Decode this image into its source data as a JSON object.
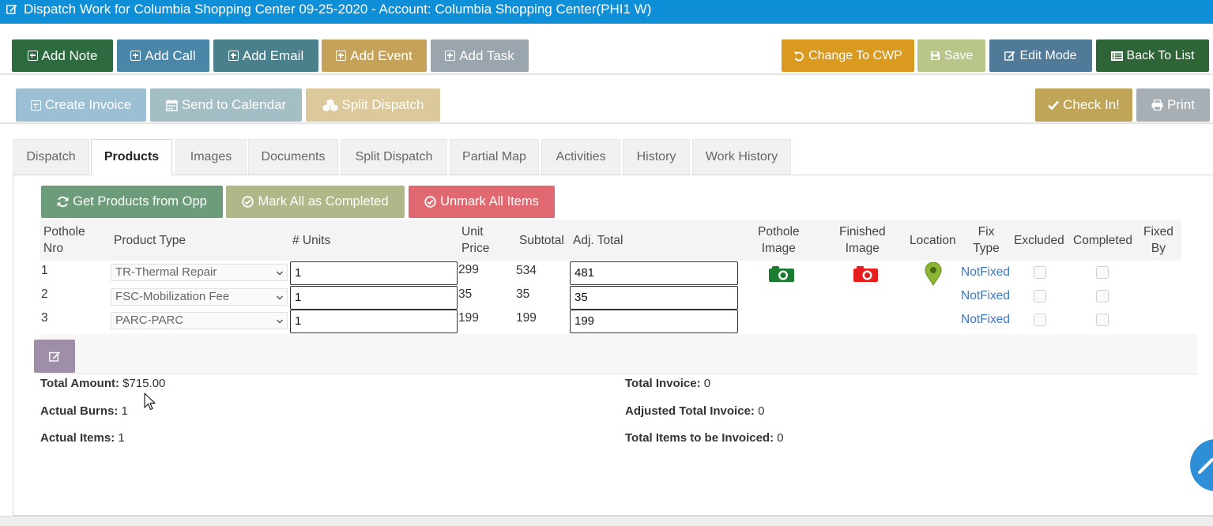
{
  "title": "Dispatch Work for Columbia Shopping Center 09-25-2020 - Account: Columbia Shopping Center(PHI1 W)",
  "toolbar1": {
    "add_note": "Add Note",
    "add_call": "Add Call",
    "add_email": "Add Email",
    "add_event": "Add Event",
    "add_task": "Add Task",
    "change_to_cwp": "Change To CWP",
    "save": "Save",
    "edit_mode": "Edit Mode",
    "back_to_list": "Back To List"
  },
  "toolbar2": {
    "create_invoice": "Create Invoice",
    "send_to_calendar": "Send to Calendar",
    "split_dispatch": "Split Dispatch",
    "check_in": "Check In!",
    "print": "Print"
  },
  "tabs": [
    "Dispatch",
    "Products",
    "Images",
    "Documents",
    "Split Dispatch",
    "Partial Map",
    "Activities",
    "History",
    "Work History"
  ],
  "active_tab": "Products",
  "actions": {
    "get_products": "Get Products from Opp",
    "mark_all": "Mark All as Completed",
    "unmark_all": "Unmark All Items"
  },
  "columns": {
    "pothole_nro": [
      "Pothole",
      "Nro"
    ],
    "product_type": "Product Type",
    "units": "# Units",
    "unit_price": [
      "Unit",
      "Price"
    ],
    "subtotal": "Subtotal",
    "adj_total": "Adj. Total",
    "pothole_image": [
      "Pothole",
      "Image"
    ],
    "finished_image": [
      "Finished",
      "Image"
    ],
    "location": "Location",
    "fix_type": [
      "Fix",
      "Type"
    ],
    "excluded": "Excluded",
    "completed": "Completed",
    "fixed_by": [
      "Fixed",
      "By"
    ]
  },
  "rows": [
    {
      "nro": "1",
      "product": "TR-Thermal Repair",
      "units": "1",
      "unit_price": "299",
      "subtotal": "534",
      "adj_total": "481",
      "fix_type": "NotFixed",
      "has_images": true
    },
    {
      "nro": "2",
      "product": "FSC-Mobilization Fee",
      "units": "1",
      "unit_price": "35",
      "subtotal": "35",
      "adj_total": "35",
      "fix_type": "NotFixed",
      "has_images": false
    },
    {
      "nro": "3",
      "product": "PARC-PARC",
      "units": "1",
      "unit_price": "199",
      "subtotal": "199",
      "adj_total": "199",
      "fix_type": "NotFixed",
      "has_images": false
    }
  ],
  "summary": {
    "total_amount_label": "Total Amount:",
    "total_amount_value": "$715.00",
    "actual_burns_label": "Actual Burns:",
    "actual_burns_value": "1",
    "actual_items_label": "Actual Items:",
    "actual_items_value": "1",
    "total_invoice_label": "Total Invoice:",
    "total_invoice_value": "0",
    "adjusted_total_invoice_label": "Adjusted Total Invoice:",
    "adjusted_total_invoice_value": "0",
    "total_items_invoiced_label": "Total Items to be Invoiced:",
    "total_items_invoiced_value": "0"
  },
  "colors": {
    "title_bar": "#0e8fd8",
    "add_note": "#2d6a3f",
    "add_call": "#4a86a8",
    "add_email": "#4a7f8c",
    "add_event": "#c4a25a",
    "add_task": "#9aa5ad",
    "change_to_cwp": "#d99a1f",
    "save": "#b9c68a",
    "edit_mode": "#517a98",
    "back_to_list": "#2f6437",
    "create_invoice": "#9dbfd4",
    "send_to_calendar": "#a3bec4",
    "split_dispatch": "#dcc99b",
    "check_in": "#c0a457",
    "print": "#a8afb4",
    "get_products": "#6d9c7a",
    "mark_all": "#b1b789",
    "unmark_all": "#e06870",
    "not_fixed": "#3a78c3"
  }
}
